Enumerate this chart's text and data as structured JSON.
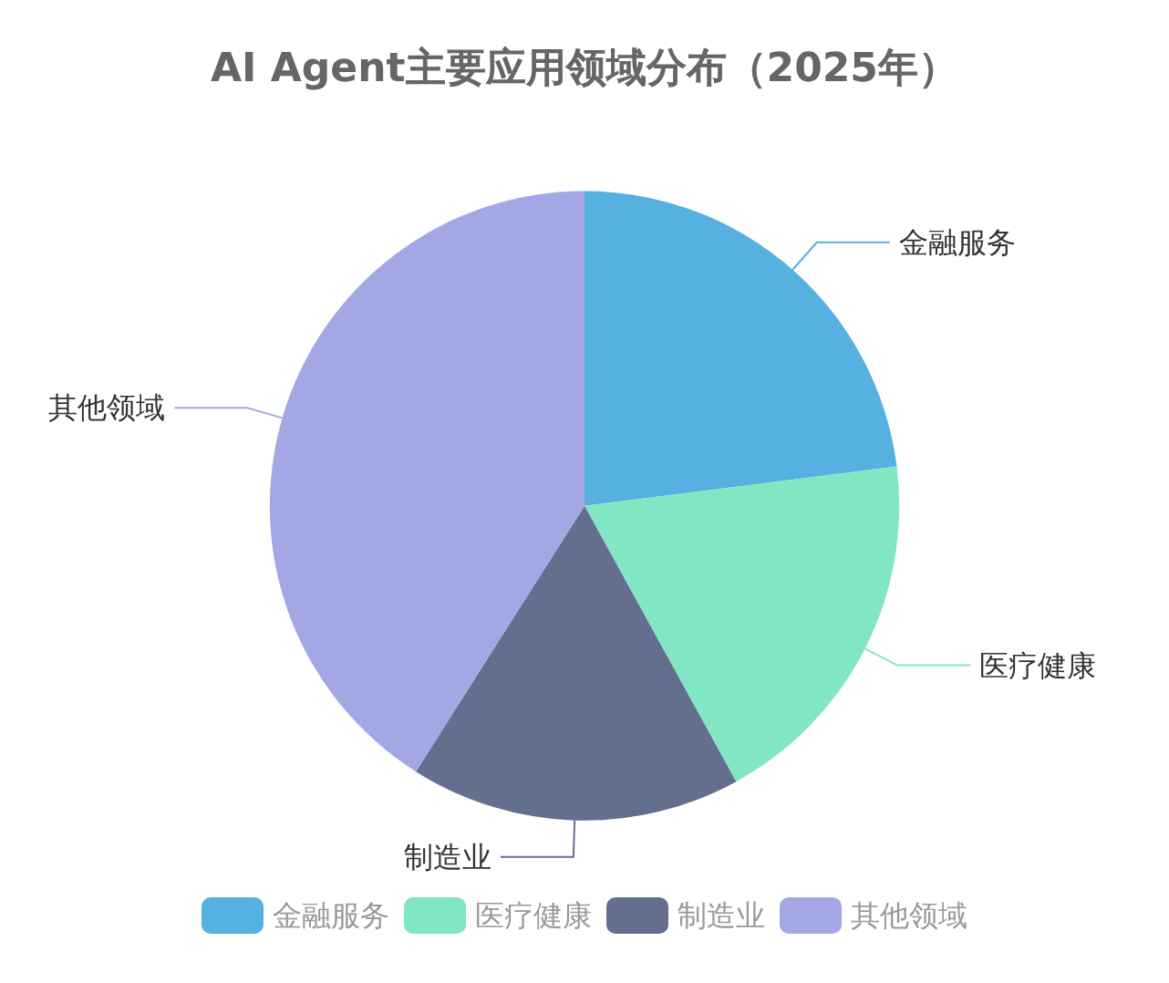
{
  "chart_data": {
    "type": "pie",
    "title": "AI Agent主要应用领域分布（2025年）",
    "categories": [
      "金融服务",
      "医疗健康",
      "制造业",
      "其他领域"
    ],
    "values": [
      23,
      19,
      17,
      41
    ],
    "colors": [
      "#56b1e0",
      "#80e6c4",
      "#646e8f",
      "#a3a8e4"
    ],
    "legend": "bottom"
  }
}
